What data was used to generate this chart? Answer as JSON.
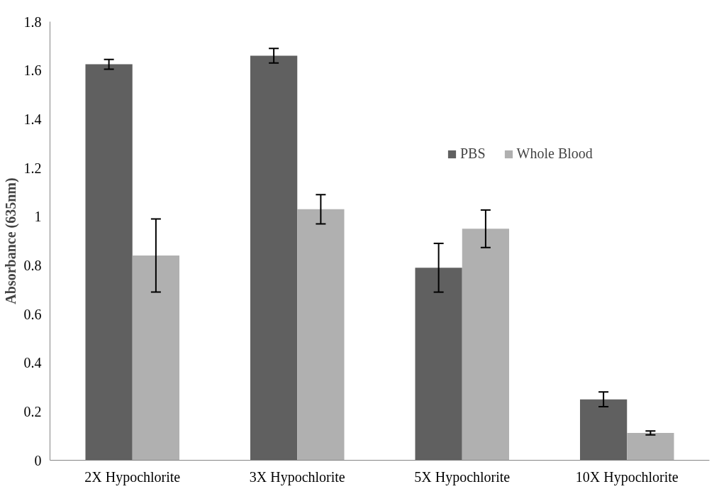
{
  "chart_data": {
    "type": "bar",
    "categories": [
      "2X Hypochlorite",
      "3X Hypochlorite",
      "5X Hypochlorite",
      "10X Hypochlorite"
    ],
    "ylabel": "Absorbance (635nm)",
    "series": [
      {
        "name": "PBS",
        "color": "#606060",
        "values": [
          1.625,
          1.66,
          0.79,
          0.25
        ],
        "errors": [
          0.02,
          0.03,
          0.1,
          0.03
        ]
      },
      {
        "name": "Whole Blood",
        "color": "#b0b0b0",
        "values": [
          0.84,
          1.03,
          0.95,
          0.112
        ],
        "errors": [
          0.15,
          0.06,
          0.077,
          0.008
        ]
      }
    ],
    "ylim": [
      0,
      1.8
    ],
    "yticks": [
      0,
      0.2,
      0.4,
      0.6,
      0.8,
      1,
      1.2,
      1.4,
      1.6,
      1.8
    ],
    "grid": false,
    "legend": "top right"
  }
}
